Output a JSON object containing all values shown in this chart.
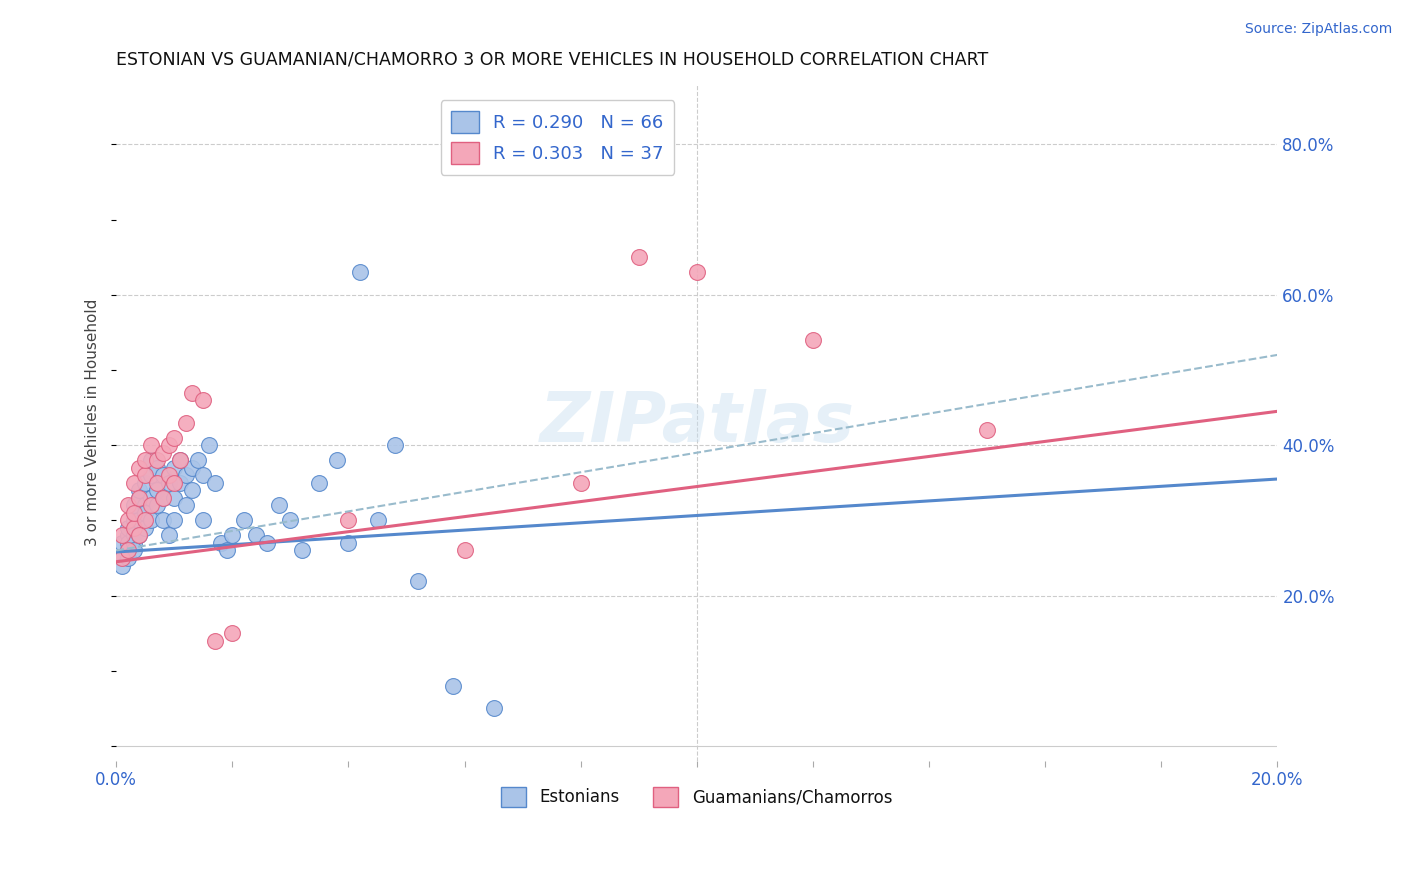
{
  "title": "ESTONIAN VS GUAMANIAN/CHAMORRO 3 OR MORE VEHICLES IN HOUSEHOLD CORRELATION CHART",
  "source": "Source: ZipAtlas.com",
  "ylabel": "3 or more Vehicles in Household",
  "ytick_labels": [
    "20.0%",
    "40.0%",
    "60.0%",
    "80.0%"
  ],
  "ytick_values": [
    0.2,
    0.4,
    0.6,
    0.8
  ],
  "xmin": 0.0,
  "xmax": 0.2,
  "ymin": -0.02,
  "ymax": 0.88,
  "r_estonian": 0.29,
  "n_estonian": 66,
  "r_guamanian": 0.303,
  "n_guamanian": 37,
  "color_estonian": "#aac4e8",
  "color_guamanian": "#f4a7b9",
  "color_estonian_line": "#5588cc",
  "color_guamanian_line": "#e06080",
  "color_dashed_line": "#99bbcc",
  "legend_label_estonian": "Estonians",
  "legend_label_guamanian": "Guamanians/Chamorros",
  "watermark": "ZIPatlas",
  "estonian_x": [
    0.001,
    0.001,
    0.001,
    0.002,
    0.002,
    0.002,
    0.002,
    0.002,
    0.003,
    0.003,
    0.003,
    0.003,
    0.003,
    0.003,
    0.004,
    0.004,
    0.004,
    0.004,
    0.005,
    0.005,
    0.005,
    0.005,
    0.006,
    0.006,
    0.006,
    0.006,
    0.007,
    0.007,
    0.007,
    0.008,
    0.008,
    0.008,
    0.009,
    0.009,
    0.01,
    0.01,
    0.01,
    0.011,
    0.011,
    0.012,
    0.012,
    0.013,
    0.013,
    0.014,
    0.015,
    0.015,
    0.016,
    0.017,
    0.018,
    0.019,
    0.02,
    0.022,
    0.024,
    0.026,
    0.028,
    0.03,
    0.032,
    0.035,
    0.038,
    0.04,
    0.042,
    0.045,
    0.048,
    0.052,
    0.058,
    0.065
  ],
  "estonian_y": [
    0.25,
    0.27,
    0.24,
    0.26,
    0.28,
    0.25,
    0.29,
    0.27,
    0.3,
    0.28,
    0.27,
    0.31,
    0.32,
    0.26,
    0.33,
    0.3,
    0.28,
    0.34,
    0.32,
    0.35,
    0.29,
    0.31,
    0.36,
    0.33,
    0.3,
    0.38,
    0.37,
    0.32,
    0.34,
    0.36,
    0.33,
    0.3,
    0.35,
    0.28,
    0.37,
    0.33,
    0.3,
    0.38,
    0.35,
    0.36,
    0.32,
    0.37,
    0.34,
    0.38,
    0.36,
    0.3,
    0.4,
    0.35,
    0.27,
    0.26,
    0.28,
    0.3,
    0.28,
    0.27,
    0.32,
    0.3,
    0.26,
    0.35,
    0.38,
    0.27,
    0.63,
    0.3,
    0.4,
    0.22,
    0.08,
    0.05
  ],
  "guamanian_x": [
    0.001,
    0.001,
    0.002,
    0.002,
    0.002,
    0.003,
    0.003,
    0.003,
    0.004,
    0.004,
    0.004,
    0.005,
    0.005,
    0.005,
    0.006,
    0.006,
    0.007,
    0.007,
    0.008,
    0.008,
    0.009,
    0.009,
    0.01,
    0.01,
    0.011,
    0.012,
    0.013,
    0.015,
    0.017,
    0.02,
    0.04,
    0.06,
    0.08,
    0.09,
    0.1,
    0.12,
    0.15
  ],
  "guamanian_y": [
    0.28,
    0.25,
    0.3,
    0.26,
    0.32,
    0.29,
    0.31,
    0.35,
    0.33,
    0.28,
    0.37,
    0.36,
    0.3,
    0.38,
    0.4,
    0.32,
    0.38,
    0.35,
    0.39,
    0.33,
    0.4,
    0.36,
    0.41,
    0.35,
    0.38,
    0.43,
    0.47,
    0.46,
    0.14,
    0.15,
    0.3,
    0.26,
    0.35,
    0.65,
    0.63,
    0.54,
    0.42
  ],
  "line_estonian": {
    "x0": 0.0,
    "y0": 0.258,
    "x1": 0.2,
    "y1": 0.355
  },
  "line_guamanian": {
    "x0": 0.0,
    "y0": 0.245,
    "x1": 0.2,
    "y1": 0.445
  },
  "line_dashed": {
    "x0": 0.0,
    "y0": 0.26,
    "x1": 0.2,
    "y1": 0.52
  }
}
